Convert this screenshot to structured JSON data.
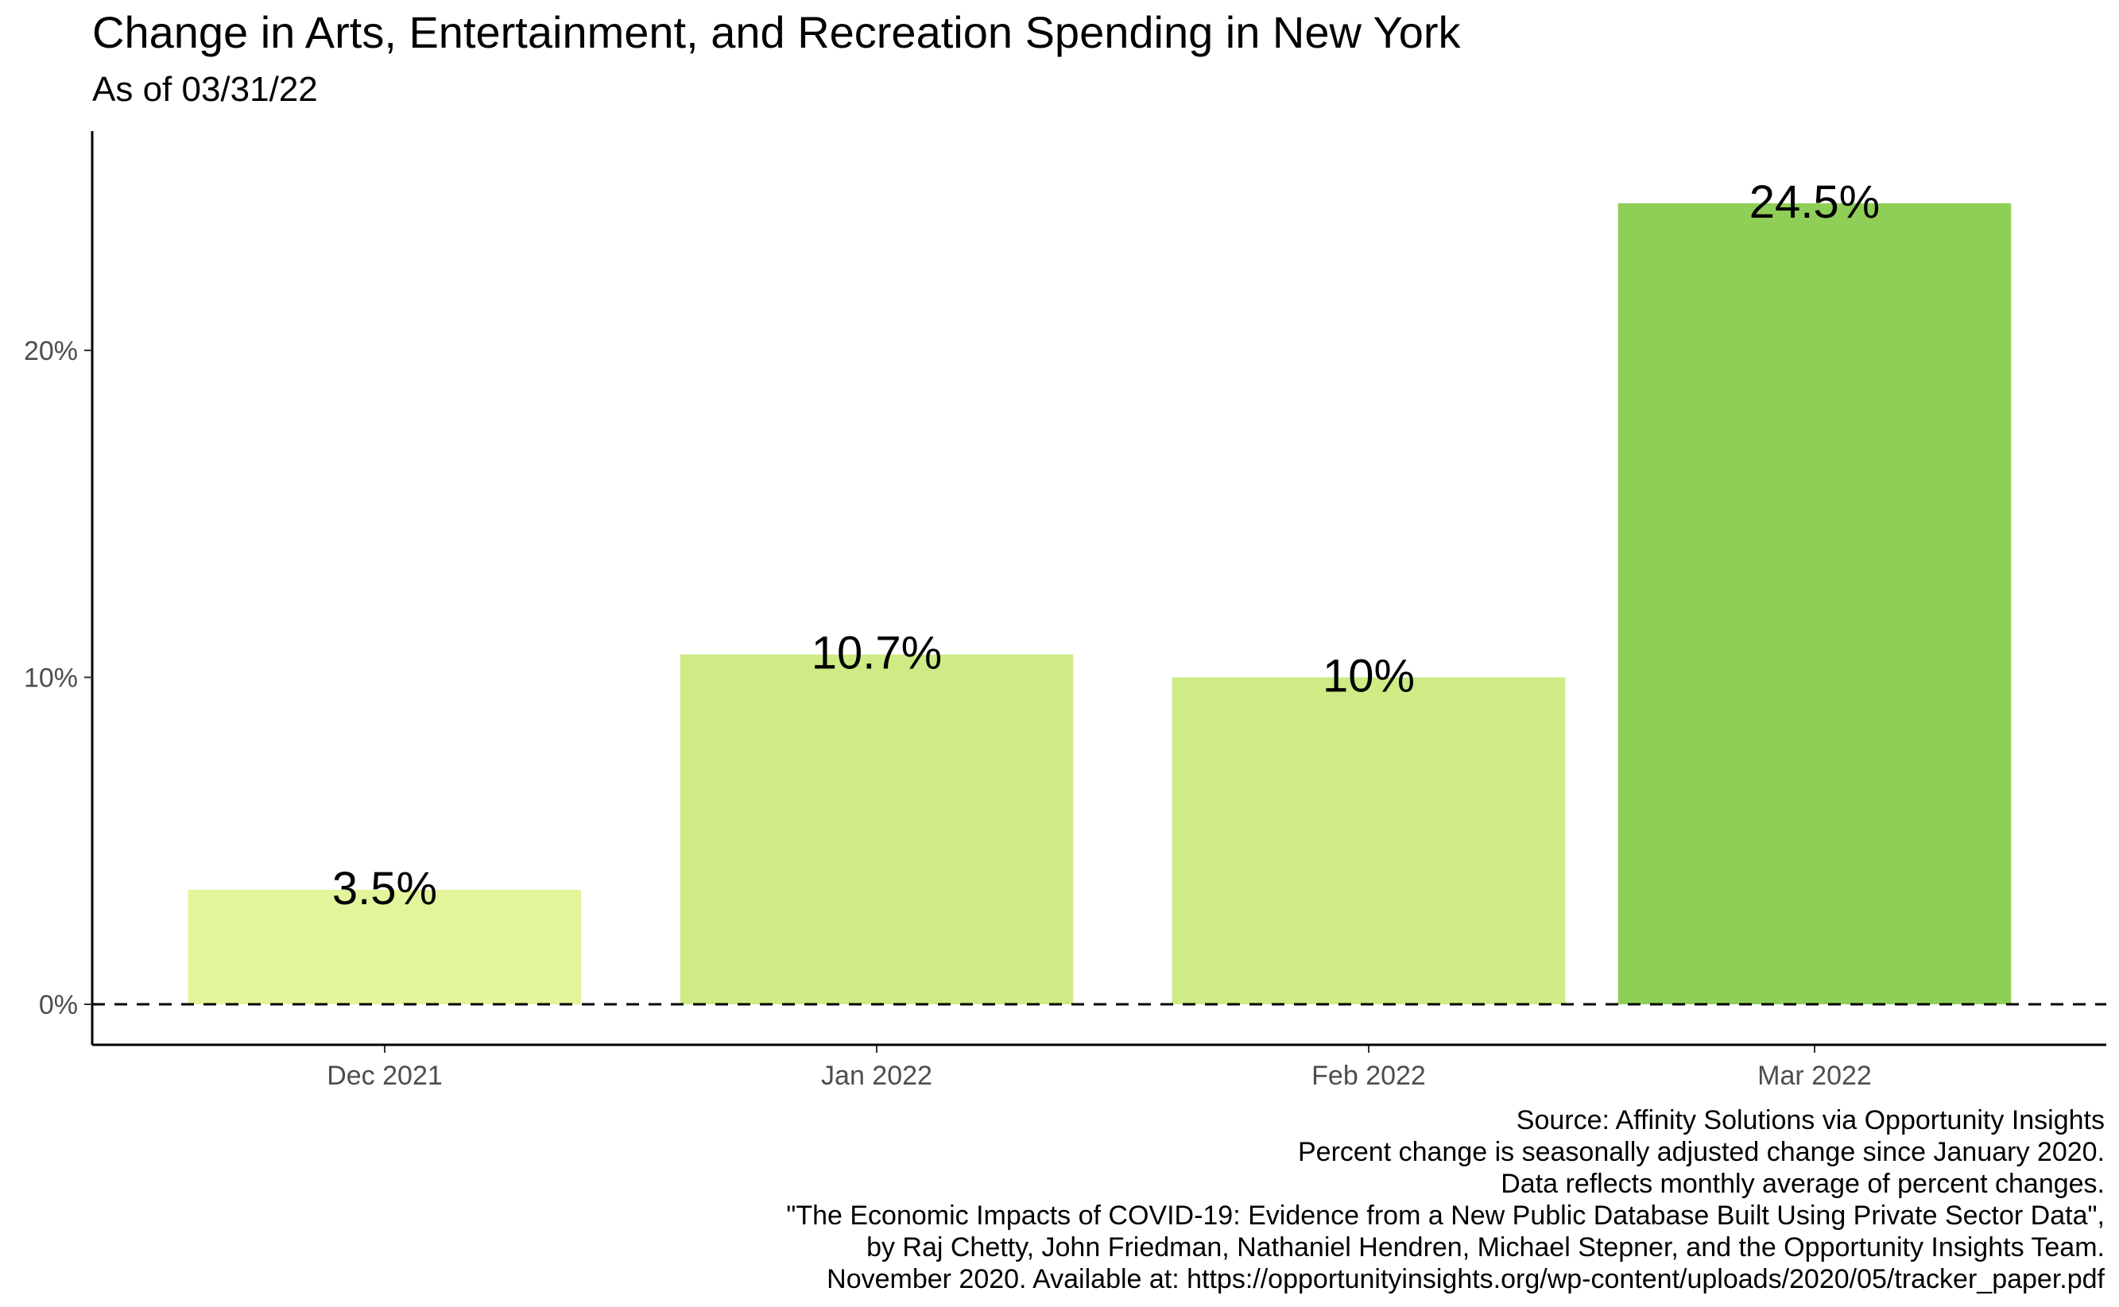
{
  "title": "Change in Arts, Entertainment, and Recreation Spending in New York",
  "subtitle": "As of 03/31/22",
  "chart_data": {
    "type": "bar",
    "categories": [
      "Dec 2021",
      "Jan 2022",
      "Feb 2022",
      "Mar 2022"
    ],
    "values": [
      3.5,
      10.7,
      10.0,
      24.5
    ],
    "data_labels": [
      "3.5%",
      "10.7%",
      "10%",
      "24.5%"
    ],
    "bar_colors": [
      "#e2f59a",
      "#ceeb86",
      "#ceeb86",
      "#8fcf58"
    ],
    "y_ticks": [
      0,
      10,
      20
    ],
    "y_tick_labels": [
      "0%",
      "10%",
      "20%"
    ],
    "ylim": [
      -1.25,
      27
    ],
    "reference_line": {
      "y": 0,
      "style": "dashed"
    },
    "xlabel": "",
    "ylabel": "",
    "grid": false
  },
  "caption": [
    "Source: Affinity Solutions via Opportunity Insights",
    "Percent change is seasonally adjusted change since January 2020.",
    "Data reflects monthly average of percent changes.",
    "\"The Economic Impacts of COVID-19: Evidence from a New Public Database Built Using Private Sector Data\",",
    "by Raj Chetty, John Friedman, Nathaniel Hendren, Michael Stepner, and the Opportunity Insights Team.",
    "November 2020. Available at: https://opportunityinsights.org/wp-content/uploads/2020/05/tracker_paper.pdf"
  ]
}
